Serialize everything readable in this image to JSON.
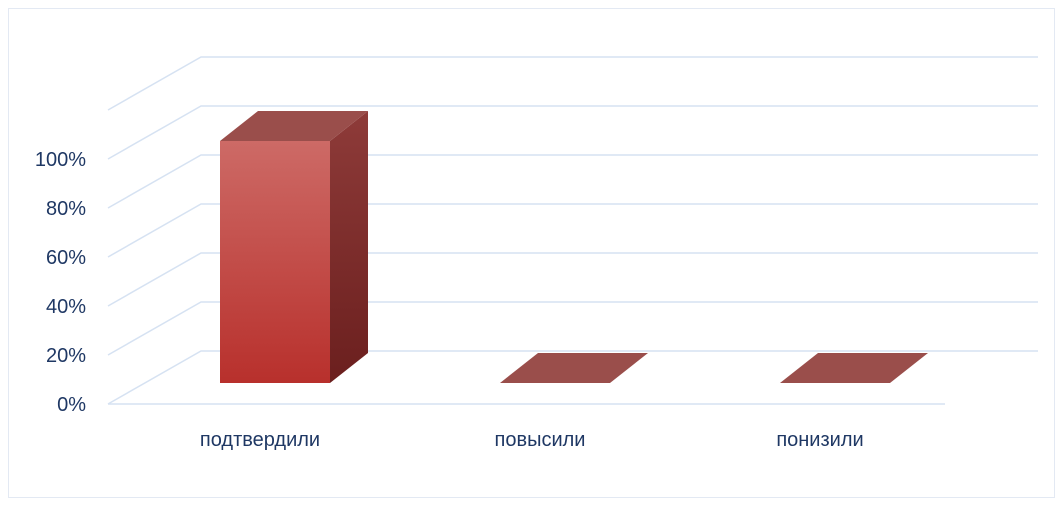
{
  "chart_data": {
    "type": "bar",
    "categories": [
      "подтвердили",
      "повысили",
      "понизили"
    ],
    "values": [
      100,
      0,
      0
    ],
    "y_ticks": [
      "0%",
      "20%",
      "40%",
      "60%",
      "80%",
      "100%"
    ],
    "ylim": [
      0,
      100
    ],
    "grid": true,
    "legend": "none",
    "colors": {
      "bar_front_top": "#cd6a66",
      "bar_front_bottom": "#b8302c",
      "bar_side_top": "#8e3b39",
      "bar_side_bottom": "#6b1f1e",
      "bar_top": "#9a4e4b",
      "grid": "#d6e2f2",
      "axis_text": "#1f3864"
    }
  }
}
